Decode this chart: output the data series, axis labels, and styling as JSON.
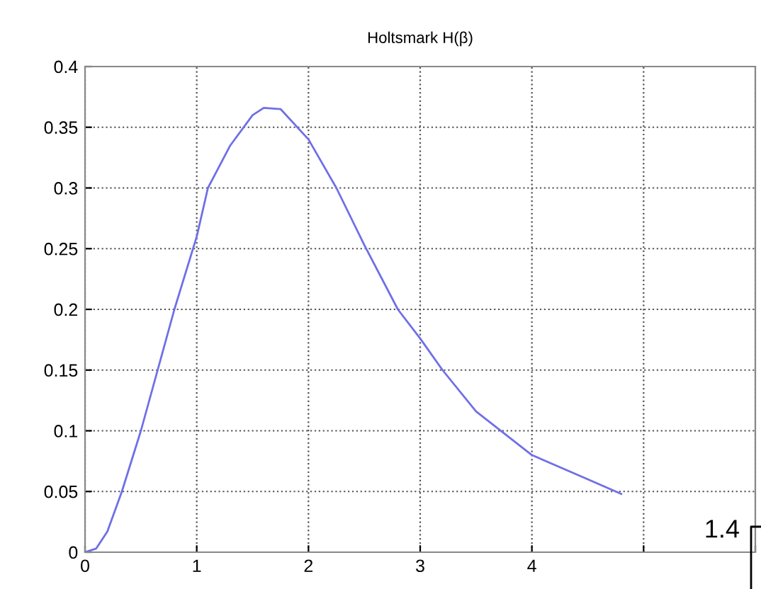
{
  "chart_data": {
    "type": "line",
    "title": "Holtsmark H(β)",
    "x": [
      0,
      0.1,
      0.2,
      0.33,
      0.5,
      0.65,
      0.8,
      1.0,
      1.1,
      1.3,
      1.5,
      1.6,
      1.75,
      2.0,
      2.25,
      2.5,
      2.8,
      3.0,
      3.2,
      3.5,
      4.0,
      4.5,
      4.8
    ],
    "series": [
      {
        "color": "#6f6fe8",
        "values": [
          0,
          0.003,
          0.017,
          0.05,
          0.1,
          0.15,
          0.2,
          0.26,
          0.3,
          0.335,
          0.36,
          0.366,
          0.365,
          0.34,
          0.3,
          0.253,
          0.2,
          0.176,
          0.15,
          0.116,
          0.08,
          0.06,
          0.048
        ]
      }
    ],
    "xlim": [
      0,
      6
    ],
    "xticks": [
      0,
      1,
      2,
      3,
      4,
      {
        "value": 5,
        "label": null
      },
      {
        "value": 6,
        "label": null
      }
    ],
    "ylim": [
      0,
      0.4
    ],
    "yticks": [
      0,
      0.05,
      0.1,
      0.15,
      0.2,
      0.25,
      0.3,
      0.35,
      0.4
    ],
    "grid": true,
    "line_style": "solid",
    "marker": "none",
    "annotations": [
      "1.4"
    ]
  }
}
